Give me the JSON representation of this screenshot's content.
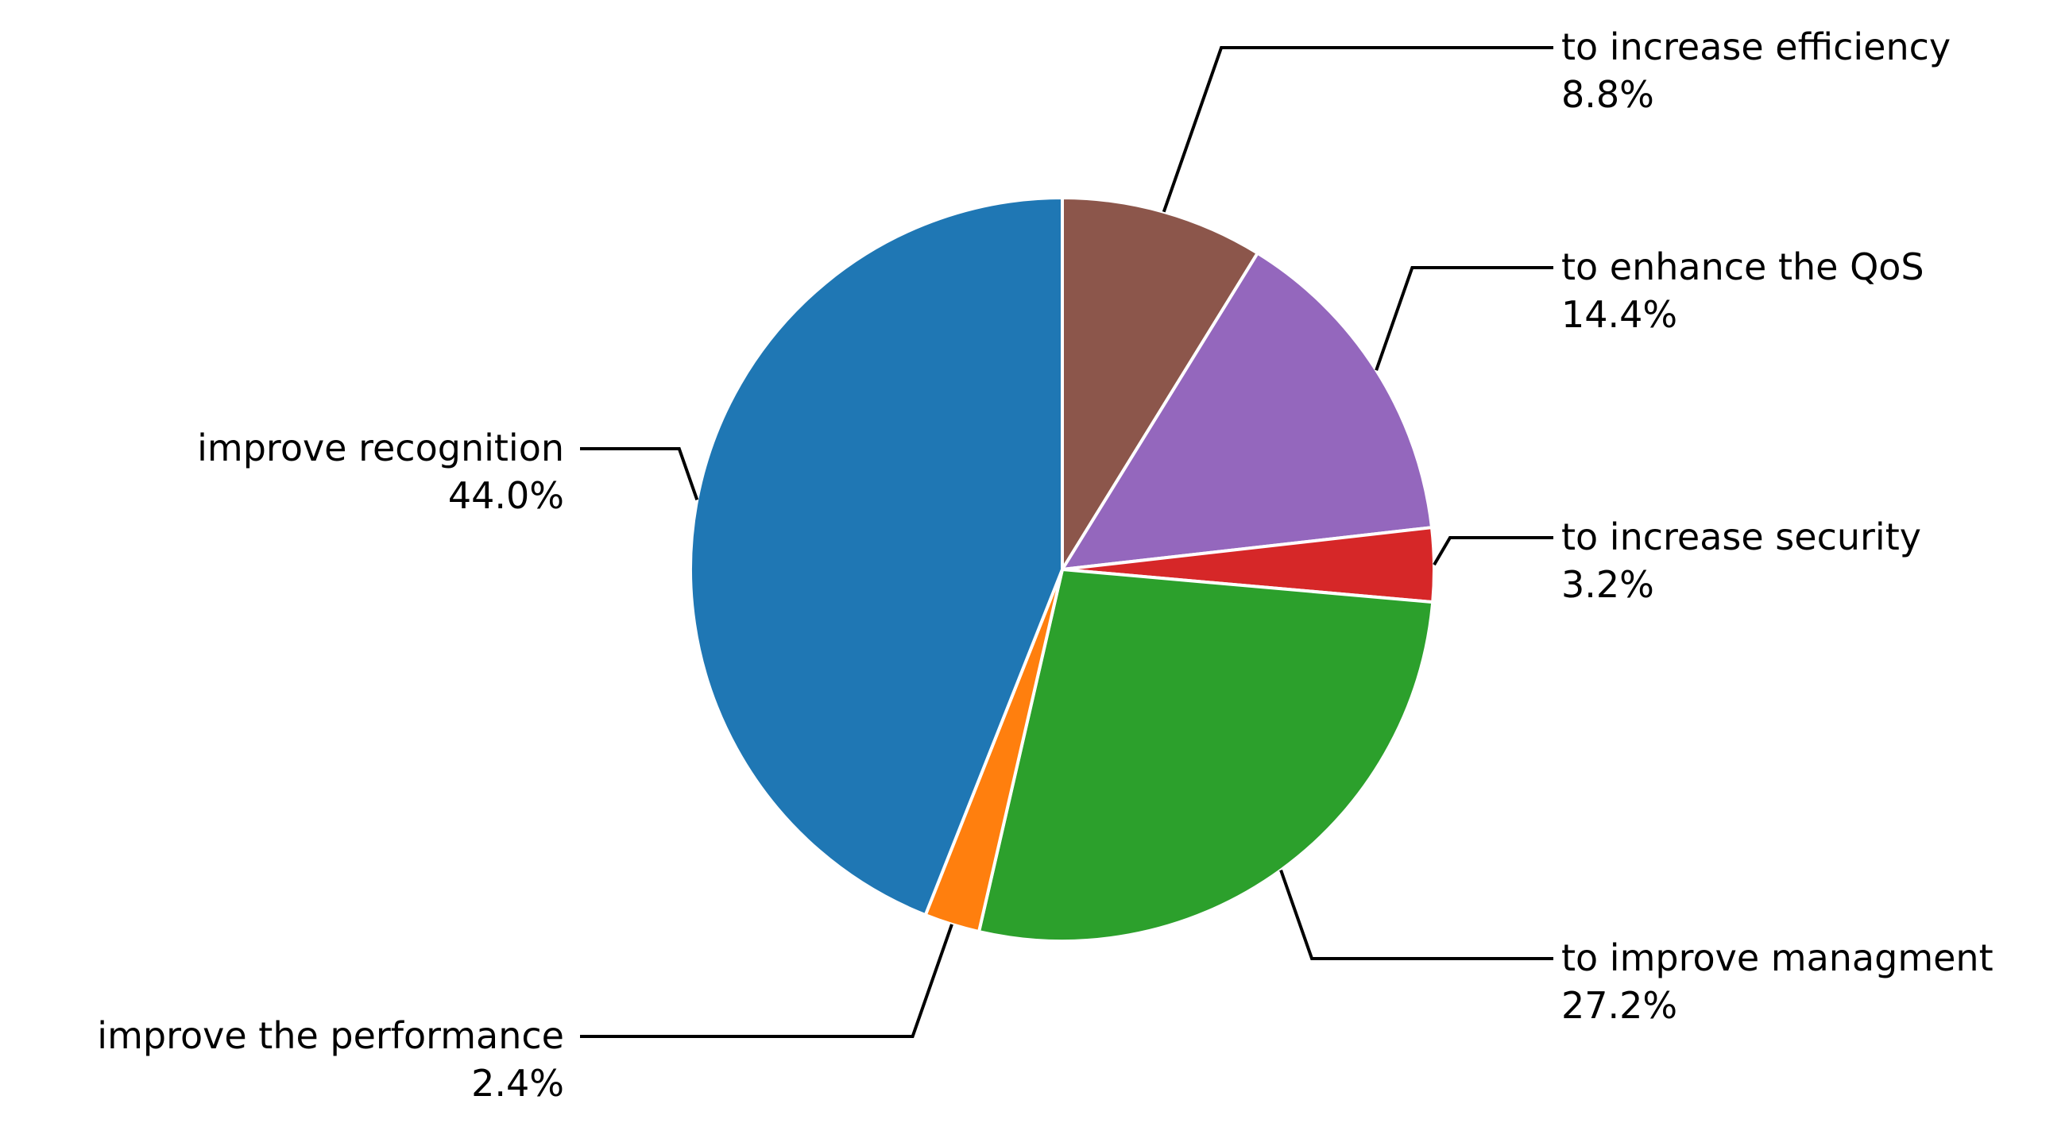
{
  "chart_data": {
    "type": "pie",
    "title": "",
    "start_angle_deg": 90,
    "direction": "clockwise",
    "slice_edge_color": "#ffffff",
    "slices": [
      {
        "label": "to increase efficiency",
        "value": 8.8,
        "percent_label": "8.8%",
        "color": "#8c564b",
        "label_side": "right"
      },
      {
        "label": "to enhance the QoS",
        "value": 14.4,
        "percent_label": "14.4%",
        "color": "#9467bd",
        "label_side": "right"
      },
      {
        "label": "to increase security",
        "value": 3.2,
        "percent_label": "3.2%",
        "color": "#d62728",
        "label_side": "right"
      },
      {
        "label": "to improve managment",
        "value": 27.2,
        "percent_label": "27.2%",
        "color": "#2ca02c",
        "label_side": "right"
      },
      {
        "label": "improve the performance",
        "value": 2.4,
        "percent_label": "2.4%",
        "color": "#ff7f0e",
        "label_side": "left"
      },
      {
        "label": "improve recognition",
        "value": 44.0,
        "percent_label": "44.0%",
        "color": "#1f77b4",
        "label_side": "left"
      }
    ]
  }
}
